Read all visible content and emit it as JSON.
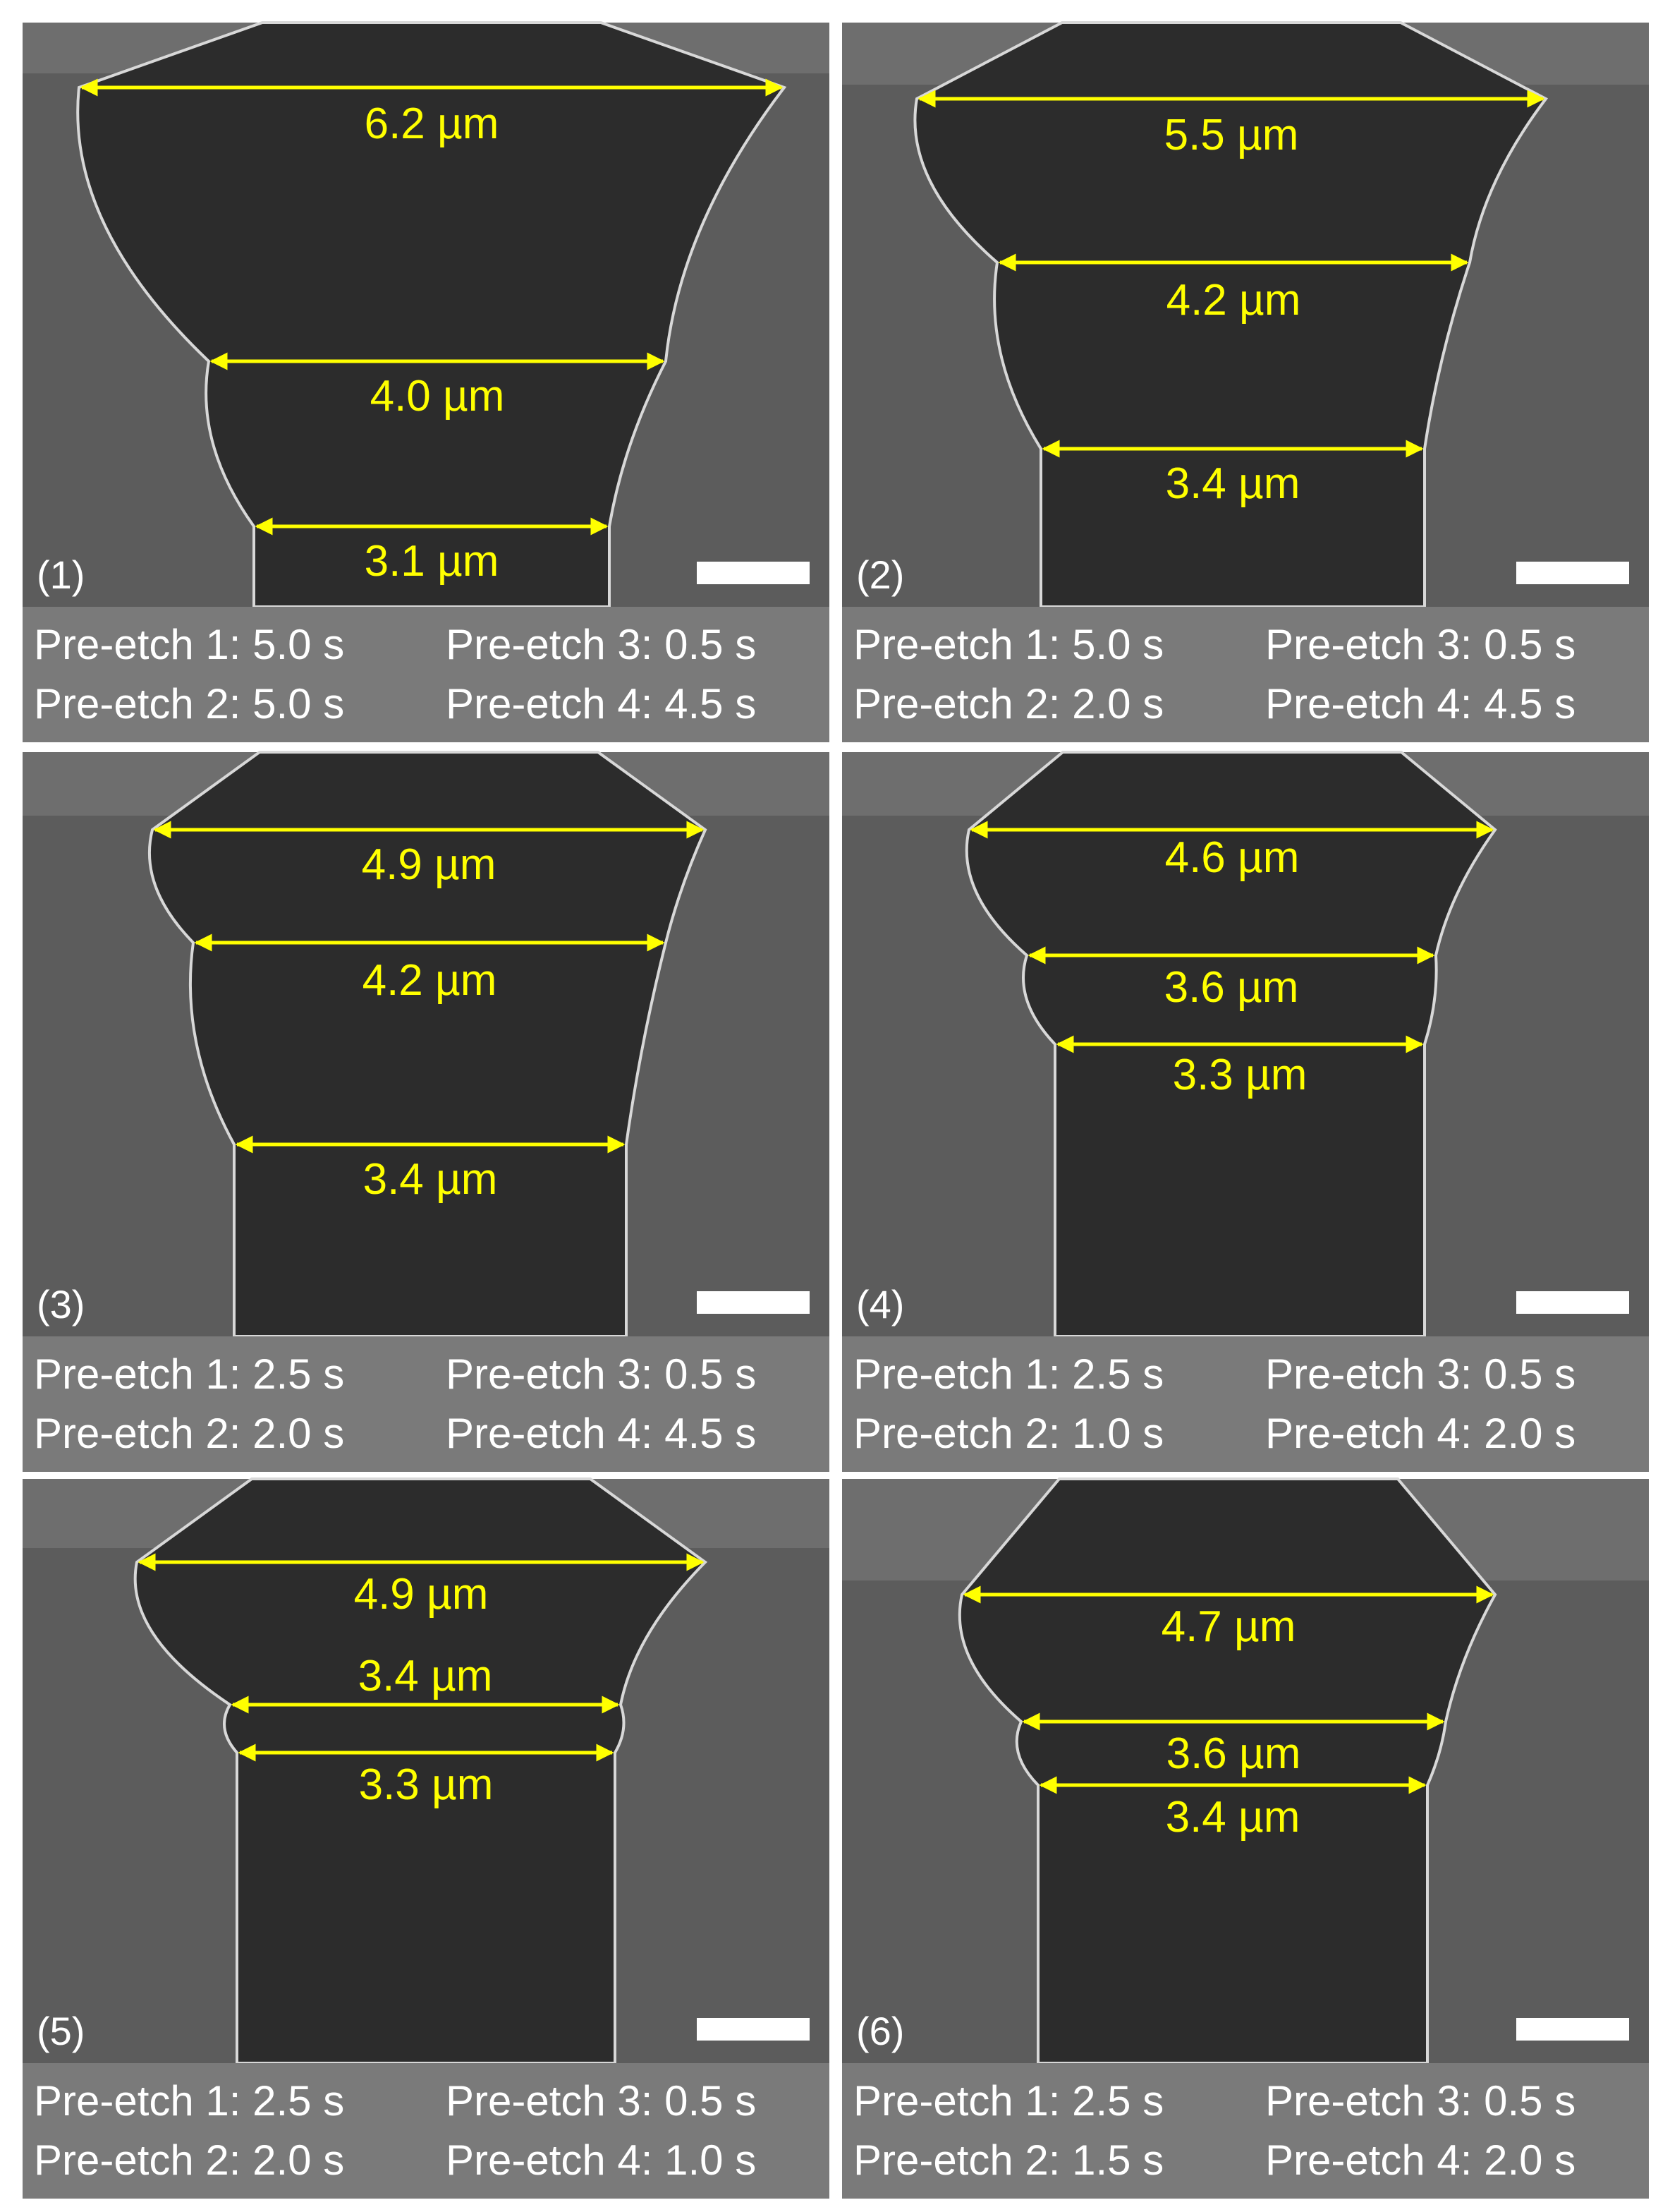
{
  "panels": [
    {
      "label": "(1)",
      "measurements": [
        "6.2 µm",
        "4.0 µm",
        "3.1 µm"
      ],
      "conditions": [
        "Pre-etch 1: 5.0 s",
        "Pre-etch 3: 0.5 s",
        "Pre-etch 2: 5.0 s",
        "Pre-etch 4: 4.5 s"
      ]
    },
    {
      "label": "(2)",
      "measurements": [
        "5.5 µm",
        "4.2 µm",
        "3.4 µm"
      ],
      "conditions": [
        "Pre-etch 1: 5.0 s",
        "Pre-etch 3: 0.5 s",
        "Pre-etch 2: 2.0 s",
        "Pre-etch 4: 4.5 s"
      ]
    },
    {
      "label": "(3)",
      "measurements": [
        "4.9 µm",
        "4.2 µm",
        "3.4 µm"
      ],
      "conditions": [
        "Pre-etch 1: 2.5 s",
        "Pre-etch 3: 0.5 s",
        "Pre-etch 2: 2.0 s",
        "Pre-etch 4: 4.5 s"
      ]
    },
    {
      "label": "(4)",
      "measurements": [
        "4.6 µm",
        "3.6 µm",
        "3.3 µm"
      ],
      "conditions": [
        "Pre-etch 1: 2.5 s",
        "Pre-etch 3: 0.5 s",
        "Pre-etch 2: 1.0 s",
        "Pre-etch 4: 2.0 s"
      ]
    },
    {
      "label": "(5)",
      "measurements": [
        "4.9 µm",
        "3.4 µm",
        "3.3 µm"
      ],
      "conditions": [
        "Pre-etch 1: 2.5 s",
        "Pre-etch 3: 0.5 s",
        "Pre-etch 2: 2.0 s",
        "Pre-etch 4: 1.0 s"
      ]
    },
    {
      "label": "(6)",
      "measurements": [
        "4.7 µm",
        "3.6 µm",
        "3.4 µm"
      ],
      "conditions": [
        "Pre-etch 1: 2.5 s",
        "Pre-etch 3: 0.5 s",
        "Pre-etch 2: 1.5 s",
        "Pre-etch 4: 2.0 s"
      ]
    }
  ]
}
